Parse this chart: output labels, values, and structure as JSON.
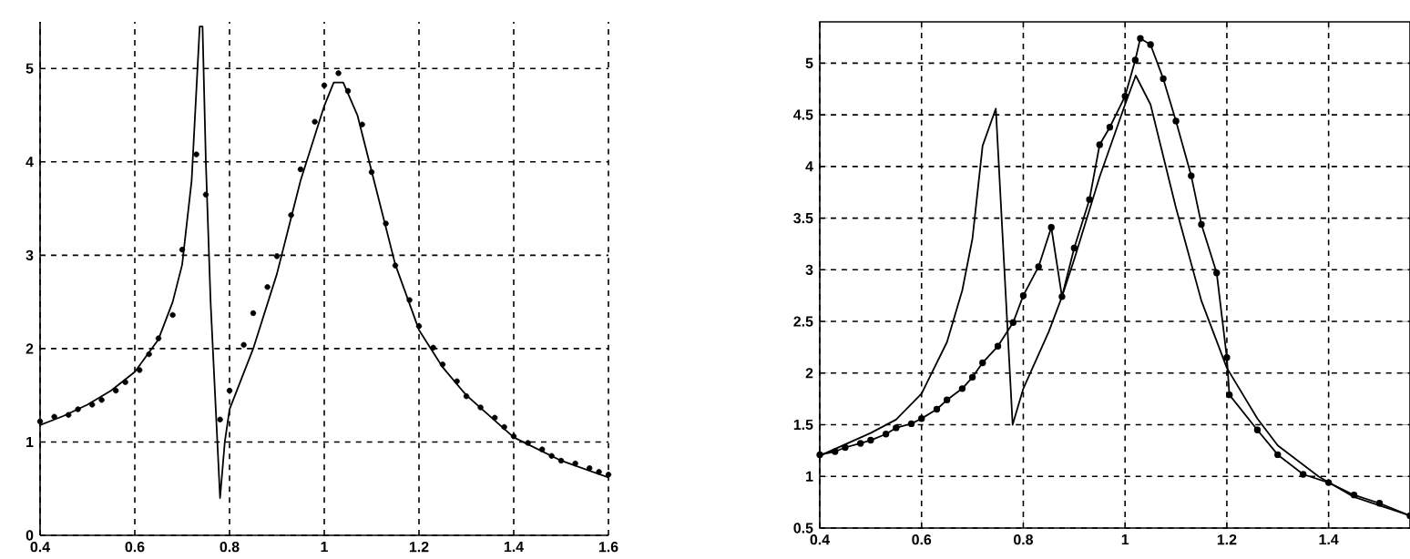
{
  "chart_data": [
    {
      "type": "line",
      "xlim": [
        0.4,
        1.6
      ],
      "ylim": [
        0,
        5.5
      ],
      "xticks": [
        0.4,
        0.6,
        0.8,
        1,
        1.2,
        1.4,
        1.6
      ],
      "yticks": [
        0,
        1,
        2,
        3,
        4,
        5
      ],
      "grid": true,
      "series": [
        {
          "color": "#000000",
          "marker": "none",
          "x": [
            0.4,
            0.45,
            0.5,
            0.55,
            0.6,
            0.65,
            0.68,
            0.7,
            0.72,
            0.737,
            0.743,
            0.75,
            0.76,
            0.78,
            0.79,
            0.8,
            0.85,
            0.9,
            0.95,
            1.0,
            1.02,
            1.04,
            1.07,
            1.1,
            1.15,
            1.2,
            1.25,
            1.3,
            1.4,
            1.5,
            1.6
          ],
          "values": [
            1.18,
            1.28,
            1.4,
            1.55,
            1.75,
            2.1,
            2.5,
            2.9,
            3.8,
            5.45,
            5.45,
            4.0,
            2.5,
            0.4,
            1.0,
            1.35,
            2.0,
            2.8,
            3.8,
            4.6,
            4.85,
            4.85,
            4.5,
            3.9,
            2.9,
            2.2,
            1.8,
            1.5,
            1.05,
            0.8,
            0.62
          ]
        },
        {
          "type": "scatter",
          "color": "#000000",
          "marker": "circle",
          "x": [
            0.4,
            0.43,
            0.46,
            0.48,
            0.51,
            0.53,
            0.56,
            0.58,
            0.61,
            0.63,
            0.65,
            0.68,
            0.7,
            0.73,
            0.75,
            0.78,
            0.8,
            0.83,
            0.85,
            0.88,
            0.9,
            0.93,
            0.95,
            0.98,
            1.0,
            1.03,
            1.05,
            1.08,
            1.1,
            1.13,
            1.15,
            1.18,
            1.2,
            1.23,
            1.25,
            1.28,
            1.3,
            1.33,
            1.36,
            1.38,
            1.4,
            1.43,
            1.46,
            1.48,
            1.5,
            1.53,
            1.56,
            1.58,
            1.6
          ],
          "values": [
            1.22,
            1.27,
            1.29,
            1.35,
            1.4,
            1.45,
            1.55,
            1.64,
            1.77,
            1.94,
            2.11,
            2.36,
            3.06,
            4.08,
            3.65,
            1.24,
            1.55,
            2.04,
            2.38,
            2.66,
            2.99,
            3.43,
            3.92,
            4.43,
            4.82,
            4.95,
            4.76,
            4.4,
            3.89,
            3.34,
            2.89,
            2.52,
            2.24,
            2.01,
            1.83,
            1.65,
            1.49,
            1.37,
            1.26,
            1.16,
            1.06,
            0.99,
            0.92,
            0.85,
            0.8,
            0.77,
            0.72,
            0.68,
            0.65
          ]
        }
      ]
    },
    {
      "type": "line",
      "xlim": [
        0.4,
        1.56
      ],
      "ylim": [
        0.5,
        5.4
      ],
      "xticks": [
        0.4,
        0.6,
        0.8,
        1,
        1.2,
        1.4
      ],
      "yticks": [
        0.5,
        1,
        1.5,
        2,
        2.5,
        3,
        3.5,
        4,
        4.5,
        5
      ],
      "grid": true,
      "series": [
        {
          "color": "#000000",
          "marker": "none",
          "x": [
            0.4,
            0.5,
            0.55,
            0.6,
            0.65,
            0.68,
            0.7,
            0.72,
            0.746,
            0.779,
            0.8,
            0.85,
            0.876,
            0.9,
            0.95,
            1.0,
            1.021,
            1.05,
            1.1,
            1.15,
            1.2,
            1.26,
            1.3,
            1.38,
            1.45,
            1.56
          ],
          "values": [
            1.2,
            1.42,
            1.55,
            1.8,
            2.3,
            2.8,
            3.3,
            4.2,
            4.56,
            1.5,
            1.85,
            2.4,
            2.74,
            3.1,
            3.9,
            4.6,
            4.88,
            4.6,
            3.6,
            2.7,
            2.05,
            1.56,
            1.3,
            1.0,
            0.8,
            0.62
          ]
        },
        {
          "color": "#000000",
          "marker": "circle",
          "x": [
            0.4,
            0.43,
            0.45,
            0.48,
            0.5,
            0.53,
            0.55,
            0.58,
            0.6,
            0.63,
            0.65,
            0.68,
            0.7,
            0.72,
            0.75,
            0.78,
            0.8,
            0.83,
            0.855,
            0.876,
            0.9,
            0.93,
            0.95,
            0.97,
            1.0,
            1.02,
            1.03,
            1.05,
            1.075,
            1.1,
            1.13,
            1.15,
            1.18,
            1.2,
            1.205,
            1.26,
            1.3,
            1.35,
            1.4,
            1.45,
            1.5,
            1.56
          ],
          "values": [
            1.21,
            1.24,
            1.28,
            1.32,
            1.35,
            1.41,
            1.47,
            1.51,
            1.56,
            1.65,
            1.74,
            1.85,
            1.96,
            2.1,
            2.26,
            2.49,
            2.75,
            3.03,
            3.41,
            2.74,
            3.21,
            3.68,
            4.21,
            4.38,
            4.68,
            5.03,
            5.24,
            5.18,
            4.85,
            4.44,
            3.91,
            3.44,
            2.97,
            2.15,
            1.79,
            1.45,
            1.21,
            1.02,
            0.94,
            0.82,
            0.74,
            0.62
          ]
        }
      ]
    }
  ]
}
